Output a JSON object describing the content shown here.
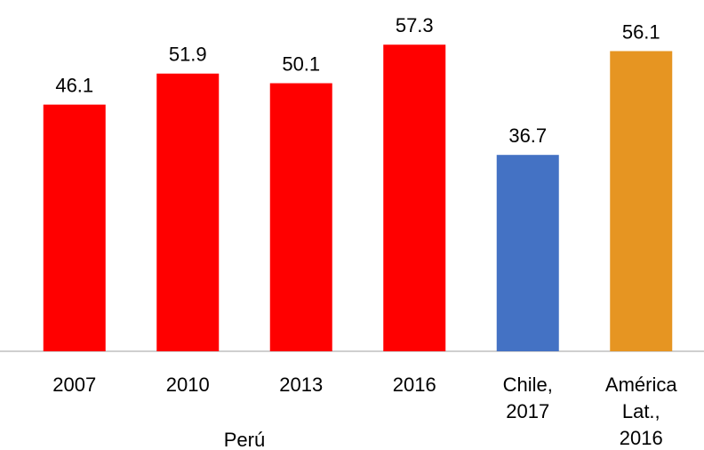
{
  "chart_data": {
    "type": "bar",
    "categories": [
      "2007",
      "2010",
      "2013",
      "2016",
      "Chile, 2017",
      "América Lat., 2016"
    ],
    "values": [
      46.1,
      51.9,
      50.1,
      57.3,
      36.7,
      56.1
    ],
    "colors": [
      "#ff0000",
      "#ff0000",
      "#ff0000",
      "#ff0000",
      "#4472c4",
      "#e69522"
    ],
    "group_label": "Perú",
    "ylim": [
      0,
      60
    ]
  }
}
